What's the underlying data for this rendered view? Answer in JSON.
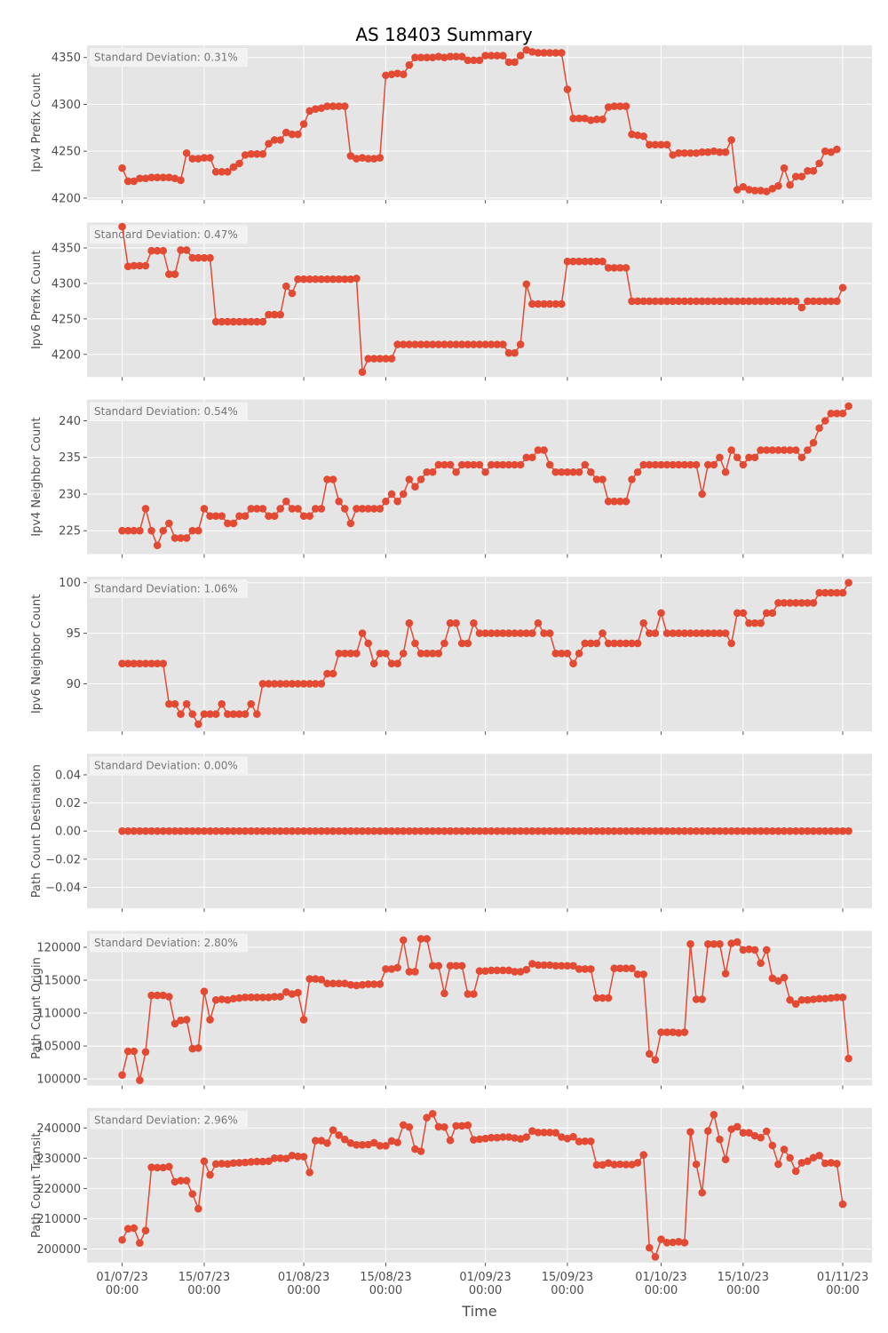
{
  "chart_data": {
    "type": "line",
    "title": "AS 18403 Summary",
    "xlabel": "Time",
    "colors": {
      "series": "#e24a33",
      "panel_bg": "#e5e5e5",
      "grid": "#ffffff",
      "text": "#4d4d4d"
    },
    "grid": true,
    "x_ticks": [
      {
        "date": "2023-07-01",
        "label": [
          "01/07/23",
          "00:00"
        ]
      },
      {
        "date": "2023-07-15",
        "label": [
          "15/07/23",
          "00:00"
        ]
      },
      {
        "date": "2023-08-01",
        "label": [
          "01/08/23",
          "00:00"
        ]
      },
      {
        "date": "2023-08-15",
        "label": [
          "15/08/23",
          "00:00"
        ]
      },
      {
        "date": "2023-09-01",
        "label": [
          "01/09/23",
          "00:00"
        ]
      },
      {
        "date": "2023-09-15",
        "label": [
          "15/09/23",
          "00:00"
        ]
      },
      {
        "date": "2023-10-01",
        "label": [
          "01/10/23",
          "00:00"
        ]
      },
      {
        "date": "2023-10-15",
        "label": [
          "15/10/23",
          "00:00"
        ]
      },
      {
        "date": "2023-11-01",
        "label": [
          "01/11/23",
          "00:00"
        ]
      }
    ],
    "xlim": [
      "2023-06-25",
      "2023-11-06"
    ],
    "x_start": "2023-07-01",
    "x_step_days": 1,
    "panels": [
      {
        "ylabel": "Ipv4 Prefix Count",
        "annotation": "Standard Deviation: 0.31%",
        "ylim": [
          4198,
          4363
        ],
        "yticks": [
          4200,
          4250,
          4300,
          4350
        ],
        "tick_labels": [
          "4200",
          "4250",
          "4300",
          "4350"
        ],
        "values": [
          4232,
          4218,
          4218,
          4221,
          4221,
          4222,
          4222,
          4222,
          4222,
          4221,
          4219,
          4248,
          4242,
          4242,
          4243,
          4243,
          4228,
          4228,
          4228,
          4233,
          4237,
          4246,
          4247,
          4247,
          4247,
          4258,
          4262,
          4262,
          4270,
          4268,
          4268,
          4279,
          4293,
          4295,
          4296,
          4298,
          4298,
          4298,
          4298,
          4245,
          4242,
          4243,
          4242,
          4242,
          4243,
          4331,
          4332,
          4333,
          4332,
          4342,
          4350,
          4350,
          4350,
          4350,
          4351,
          4350,
          4351,
          4351,
          4351,
          4347,
          4347,
          4347,
          4352,
          4352,
          4352,
          4352,
          4345,
          4345,
          4352,
          4358,
          4356,
          4355,
          4355,
          4355,
          4355,
          4355,
          4316,
          4285,
          4285,
          4285,
          4283,
          4284,
          4284,
          4297,
          4298,
          4298,
          4298,
          4268,
          4267,
          4266,
          4257,
          4257,
          4257,
          4257,
          4246,
          4248,
          4248,
          4248,
          4248,
          4249,
          4249,
          4250,
          4249,
          4249,
          4262,
          4209,
          4212,
          4209,
          4208,
          4208,
          4207,
          4210,
          4213,
          4232,
          4214,
          4223,
          4223,
          4229,
          4229,
          4237,
          4250,
          4249,
          4252
        ]
      },
      {
        "ylabel": "Ipv6 Prefix Count",
        "annotation": "Standard Deviation: 0.47%",
        "ylim": [
          4168,
          4386
        ],
        "yticks": [
          4200,
          4250,
          4300,
          4350
        ],
        "tick_labels": [
          "4200",
          "4250",
          "4300",
          "4350"
        ],
        "values": [
          4380,
          4324,
          4325,
          4325,
          4325,
          4346,
          4346,
          4346,
          4313,
          4313,
          4347,
          4347,
          4336,
          4336,
          4336,
          4336,
          4246,
          4246,
          4246,
          4246,
          4246,
          4246,
          4246,
          4246,
          4246,
          4256,
          4256,
          4256,
          4296,
          4286,
          4306,
          4306,
          4306,
          4306,
          4306,
          4306,
          4306,
          4306,
          4306,
          4306,
          4307,
          4175,
          4194,
          4194,
          4194,
          4194,
          4194,
          4214,
          4214,
          4214,
          4214,
          4214,
          4214,
          4214,
          4214,
          4214,
          4214,
          4214,
          4214,
          4214,
          4214,
          4214,
          4214,
          4214,
          4214,
          4214,
          4202,
          4202,
          4214,
          4299,
          4271,
          4271,
          4271,
          4271,
          4271,
          4271,
          4331,
          4331,
          4331,
          4331,
          4331,
          4331,
          4331,
          4322,
          4322,
          4322,
          4322,
          4275,
          4275,
          4275,
          4275,
          4275,
          4275,
          4275,
          4275,
          4275,
          4275,
          4275,
          4275,
          4275,
          4275,
          4275,
          4275,
          4275,
          4275,
          4275,
          4275,
          4275,
          4275,
          4275,
          4275,
          4275,
          4275,
          4275,
          4275,
          4275,
          4266,
          4275,
          4275,
          4275,
          4275,
          4275,
          4275,
          4294
        ]
      },
      {
        "ylabel": "Ipv4 Neighbor Count",
        "annotation": "Standard Deviation: 0.54%",
        "ylim": [
          221.8,
          242.9
        ],
        "yticks": [
          225,
          230,
          235,
          240
        ],
        "tick_labels": [
          "225",
          "230",
          "235",
          "240"
        ],
        "values": [
          225,
          225,
          225,
          225,
          228,
          225,
          223,
          225,
          226,
          224,
          224,
          224,
          225,
          225,
          228,
          227,
          227,
          227,
          226,
          226,
          227,
          227,
          228,
          228,
          228,
          227,
          227,
          228,
          229,
          228,
          228,
          227,
          227,
          228,
          228,
          232,
          232,
          229,
          228,
          226,
          228,
          228,
          228,
          228,
          228,
          229,
          230,
          229,
          230,
          232,
          231,
          232,
          233,
          233,
          234,
          234,
          234,
          233,
          234,
          234,
          234,
          234,
          233,
          234,
          234,
          234,
          234,
          234,
          234,
          235,
          235,
          236,
          236,
          234,
          233,
          233,
          233,
          233,
          233,
          234,
          233,
          232,
          232,
          229,
          229,
          229,
          229,
          232,
          233,
          234,
          234,
          234,
          234,
          234,
          234,
          234,
          234,
          234,
          234,
          230,
          234,
          234,
          235,
          233,
          236,
          235,
          234,
          235,
          235,
          236,
          236,
          236,
          236,
          236,
          236,
          236,
          235,
          236,
          237,
          239,
          240,
          241,
          241,
          241,
          242
        ]
      },
      {
        "ylabel": "Ipv6 Neighbor Count",
        "annotation": "Standard Deviation: 1.06%",
        "ylim": [
          85.3,
          100.6
        ],
        "yticks": [
          90,
          95,
          100
        ],
        "tick_labels": [
          "90",
          "95",
          "100"
        ],
        "values": [
          92,
          92,
          92,
          92,
          92,
          92,
          92,
          92,
          88,
          88,
          87,
          88,
          87,
          86,
          87,
          87,
          87,
          88,
          87,
          87,
          87,
          87,
          88,
          87,
          90,
          90,
          90,
          90,
          90,
          90,
          90,
          90,
          90,
          90,
          90,
          91,
          91,
          93,
          93,
          93,
          93,
          95,
          94,
          92,
          93,
          93,
          92,
          92,
          93,
          96,
          94,
          93,
          93,
          93,
          93,
          94,
          96,
          96,
          94,
          94,
          96,
          95,
          95,
          95,
          95,
          95,
          95,
          95,
          95,
          95,
          95,
          96,
          95,
          95,
          93,
          93,
          93,
          92,
          93,
          94,
          94,
          94,
          95,
          94,
          94,
          94,
          94,
          94,
          94,
          96,
          95,
          95,
          97,
          95,
          95,
          95,
          95,
          95,
          95,
          95,
          95,
          95,
          95,
          95,
          94,
          97,
          97,
          96,
          96,
          96,
          97,
          97,
          98,
          98,
          98,
          98,
          98,
          98,
          98,
          99,
          99,
          99,
          99,
          99,
          100
        ]
      },
      {
        "ylabel": "Path Count Destination",
        "annotation": "Standard Deviation: 0.00%",
        "ylim": [
          -0.055,
          0.055
        ],
        "yticks": [
          -0.04,
          -0.02,
          0,
          0.02,
          0.04
        ],
        "tick_labels": [
          "−0.04",
          "−0.02",
          "0.00",
          "0.02",
          "0.04"
        ],
        "constant": 0,
        "count": 125
      },
      {
        "ylabel": "Path Count Origin",
        "annotation": "Standard Deviation: 2.80%",
        "ylim": [
          99000,
          122500
        ],
        "yticks": [
          100000,
          105000,
          110000,
          115000,
          120000
        ],
        "tick_labels": [
          "100000",
          "105000",
          "110000",
          "115000",
          "120000"
        ],
        "values": [
          100600,
          104200,
          104200,
          99800,
          104100,
          112700,
          112700,
          112700,
          112500,
          108400,
          108900,
          109000,
          104600,
          104700,
          113300,
          109000,
          112000,
          112100,
          112000,
          112200,
          112300,
          112400,
          112400,
          112400,
          112400,
          112400,
          112500,
          112500,
          113200,
          112900,
          113100,
          109000,
          115200,
          115200,
          115100,
          114500,
          114500,
          114500,
          114500,
          114300,
          114200,
          114300,
          114400,
          114400,
          114400,
          116700,
          116700,
          116900,
          121100,
          116300,
          116300,
          121300,
          121300,
          117200,
          117200,
          113000,
          117200,
          117200,
          117200,
          112900,
          112900,
          116400,
          116400,
          116500,
          116500,
          116500,
          116500,
          116300,
          116300,
          116600,
          117500,
          117300,
          117300,
          117300,
          117200,
          117200,
          117200,
          117200,
          116700,
          116700,
          116700,
          112300,
          112300,
          112300,
          116800,
          116800,
          116800,
          116800,
          115900,
          115900,
          103800,
          102900,
          107100,
          107100,
          107100,
          107000,
          107100,
          120500,
          112100,
          112100,
          120500,
          120500,
          120500,
          116000,
          120600,
          120800,
          119600,
          119700,
          119600,
          117600,
          119600,
          115300,
          114900,
          115400,
          112000,
          111400,
          112000,
          112000,
          112100,
          112200,
          112200,
          112300,
          112400,
          112400,
          103100
        ]
      },
      {
        "ylabel": "Path Count Transit",
        "annotation": "Standard Deviation: 2.96%",
        "ylim": [
          195500,
          246600
        ],
        "yticks": [
          200000,
          210000,
          220000,
          230000,
          240000
        ],
        "tick_labels": [
          "200000",
          "210000",
          "220000",
          "230000",
          "240000"
        ],
        "values": [
          203000,
          206700,
          206900,
          202000,
          206100,
          227000,
          226900,
          226900,
          227200,
          222200,
          222600,
          222600,
          218200,
          213300,
          229000,
          224500,
          228100,
          228200,
          228100,
          228400,
          228500,
          228600,
          228800,
          228900,
          228900,
          229000,
          230000,
          230000,
          229900,
          230900,
          230600,
          230500,
          225300,
          235800,
          235800,
          235000,
          239300,
          237600,
          236200,
          235000,
          234400,
          234400,
          234500,
          235100,
          234100,
          234100,
          235700,
          235200,
          241000,
          240300,
          233000,
          232300,
          243400,
          244700,
          240400,
          240300,
          235900,
          240700,
          240700,
          240900,
          236100,
          236300,
          236500,
          236800,
          236800,
          237000,
          237000,
          236700,
          236400,
          237000,
          239000,
          238500,
          238500,
          238500,
          238400,
          237000,
          236500,
          237100,
          235500,
          235600,
          235600,
          227800,
          227800,
          228400,
          227900,
          228000,
          227900,
          227900,
          228500,
          231100,
          200400,
          197400,
          203200,
          202100,
          202200,
          202400,
          202100,
          238700,
          228000,
          218600,
          239000,
          244400,
          236200,
          229600,
          239600,
          240400,
          238400,
          238400,
          237400,
          236800,
          238900,
          234200,
          228000,
          232900,
          230100,
          225700,
          228500,
          229000,
          230200,
          230900,
          228300,
          228500,
          228200,
          214800
        ]
      }
    ]
  }
}
